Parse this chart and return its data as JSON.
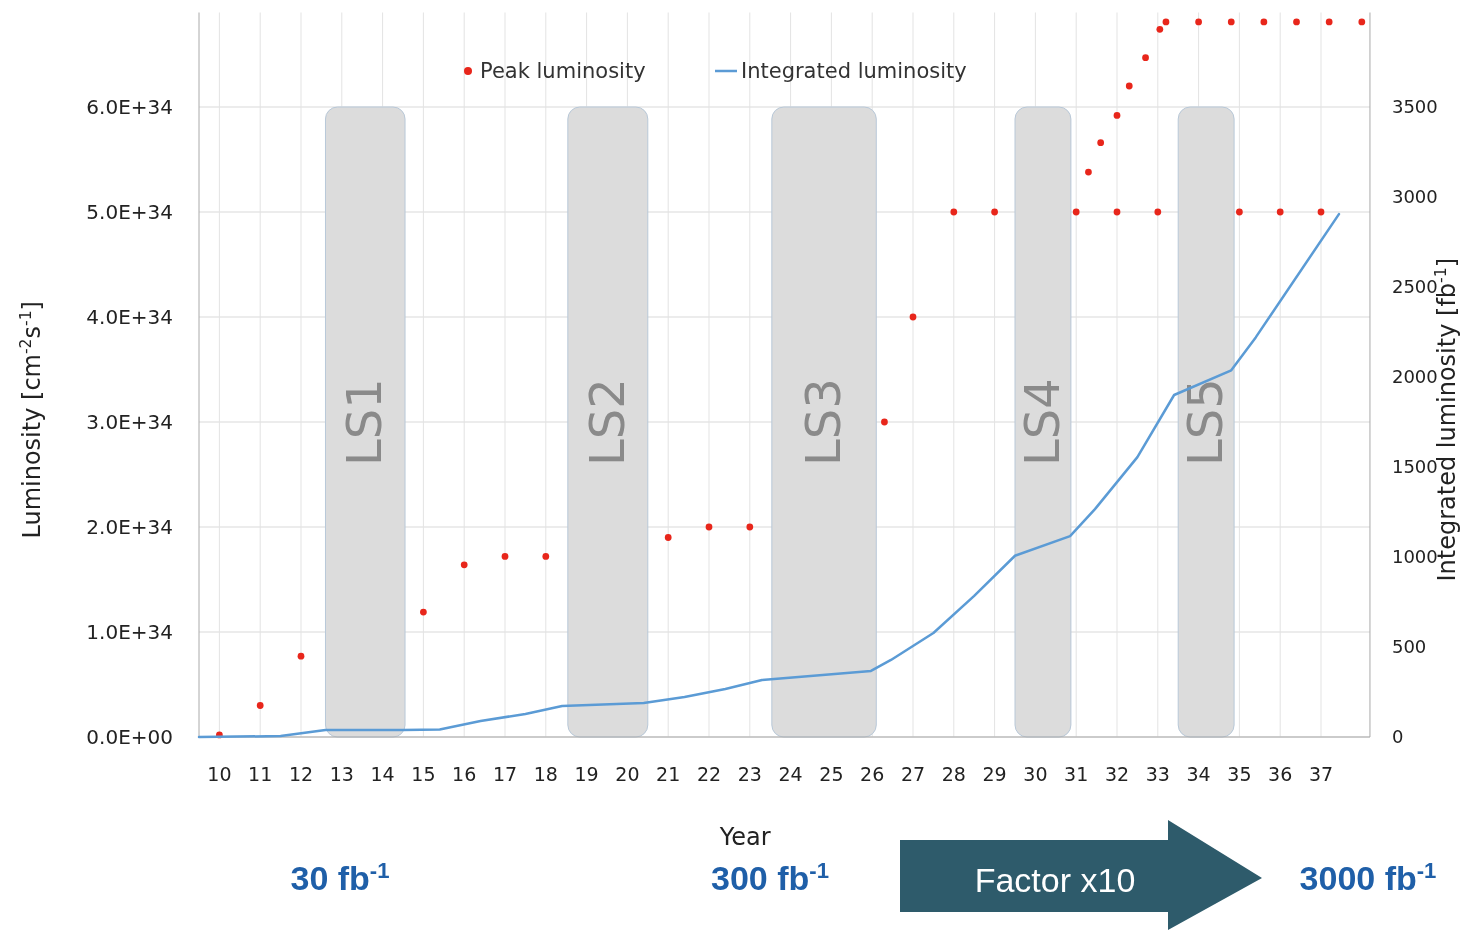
{
  "chart_data": {
    "type": "scatter",
    "xlabel": "Year",
    "ylabel": "Luminosity [cm$^{-2}$s$^{-1}$]",
    "y2label": "Integrated luminosity [fb$^{-1}$]",
    "xlim": [
      9.5,
      38.2
    ],
    "xticks": [
      10,
      11,
      12,
      13,
      14,
      15,
      16,
      17,
      18,
      19,
      20,
      21,
      22,
      23,
      24,
      25,
      26,
      27,
      28,
      29,
      30,
      31,
      32,
      33,
      34,
      35,
      36,
      37
    ],
    "ylim": [
      0,
      6.9e+34
    ],
    "yticks": [
      {
        "value": 0,
        "label": "0.0E+00"
      },
      {
        "value": 1e+34,
        "label": "1.0E+34"
      },
      {
        "value": 2e+34,
        "label": "2.0E+34"
      },
      {
        "value": 3e+34,
        "label": "3.0E+34"
      },
      {
        "value": 4e+34,
        "label": "4.0E+34"
      },
      {
        "value": 5e+34,
        "label": "5.0E+34"
      },
      {
        "value": 6e+34,
        "label": "6.0E+34"
      }
    ],
    "y2lim": [
      0,
      4025
    ],
    "y2ticks": [
      0,
      500,
      1000,
      1500,
      2000,
      2500,
      3000,
      3500
    ],
    "grid": true,
    "legend": "top",
    "marker": "circle",
    "series": [
      {
        "name": "Peak luminosity",
        "color": "#e8261b",
        "x": [
          10,
          11,
          12,
          15,
          16,
          17,
          18,
          21,
          22,
          23,
          26.3,
          27,
          28,
          29,
          31,
          32,
          33,
          35,
          36,
          37
        ],
        "values": [
          2e+32,
          3e+33,
          7.7e+33,
          1.19e+34,
          1.64e+34,
          1.72e+34,
          1.72e+34,
          1.9e+34,
          2e+34,
          2e+34,
          3e+34,
          4e+34,
          5e+34,
          5e+34,
          5e+34,
          5e+34,
          5e+34,
          5e+34,
          5e+34,
          5e+34
        ]
      },
      {
        "color": "#e8261b",
        "x": [
          31.3,
          31.6,
          32.0,
          32.3,
          32.7,
          33.05,
          33.2,
          34.0,
          34.8,
          35.6,
          36.4,
          37.2,
          38.0
        ],
        "values": [
          5.38e+34,
          5.66e+34,
          5.92e+34,
          6.2e+34,
          6.47e+34,
          6.74e+34,
          6.81e+34,
          6.81e+34,
          6.81e+34,
          6.81e+34,
          6.81e+34,
          6.81e+34,
          6.81e+34
        ]
      },
      {
        "name": "Integrated luminosity",
        "type": "line",
        "axis": "y2",
        "marker": "none",
        "color": "#5b9bd5",
        "x": [
          9.5,
          11.5,
          12.6,
          14.5,
          15.4,
          16.4,
          17.5,
          18.4,
          20.4,
          21.4,
          22.4,
          23.3,
          25.97,
          26.46,
          27.5,
          28.5,
          29.5,
          30.85,
          31.46,
          32.5,
          33.4,
          34.8,
          35.4,
          37.44
        ],
        "values": [
          0,
          5,
          39,
          39,
          42,
          89,
          128,
          172,
          189,
          222,
          267,
          317,
          367,
          428,
          578,
          784,
          1007,
          1116,
          1266,
          1555,
          1900,
          2037,
          2220,
          2905
        ]
      }
    ],
    "bands": [
      {
        "axis": "x",
        "from": 12.6,
        "to": 14.55,
        "label": "LS1",
        "color": "#dcdcdc"
      },
      {
        "axis": "x",
        "from": 18.54,
        "to": 20.5,
        "label": "LS2",
        "color": "#dcdcdc"
      },
      {
        "axis": "x",
        "from": 23.54,
        "to": 26.1,
        "label": "LS3",
        "color": "#dcdcdc"
      },
      {
        "axis": "x",
        "from": 29.5,
        "to": 30.87,
        "label": "LS4",
        "color": "#dcdcdc"
      },
      {
        "axis": "x",
        "from": 33.5,
        "to": 34.87,
        "label": "LS5",
        "color": "#dcdcdc"
      }
    ],
    "annotations": [
      "30 fb$^{-1}$",
      "300 fb$^{-1}$",
      "Factor x10",
      "3000 fb$^{-1}$"
    ]
  }
}
